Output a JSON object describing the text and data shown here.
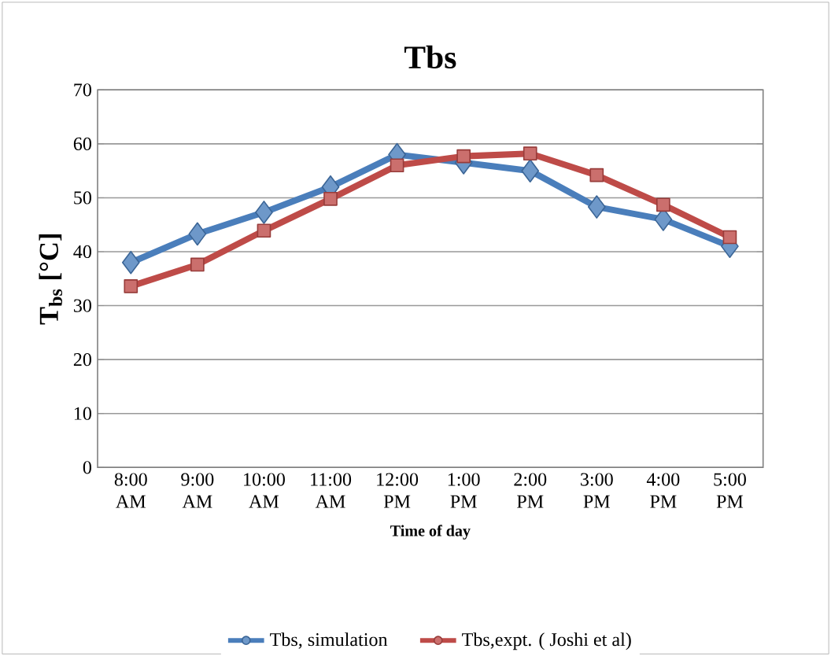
{
  "chart_data": {
    "type": "line",
    "title": "Tbs",
    "xlabel": "Time of day",
    "ylabel": "T$_{bs}$ [°C]",
    "categories": [
      "8:00 AM",
      "9:00 AM",
      "10:00 AM",
      "11:00 AM",
      "12:00 PM",
      "1:00 PM",
      "2:00 PM",
      "3:00 PM",
      "4:00 PM",
      "5:00 PM"
    ],
    "series": [
      {
        "name": "Tbs, simulation",
        "color": "#4a7ebb",
        "marker": "diamond",
        "values": [
          38,
          43.3,
          47.3,
          52,
          58,
          56.5,
          55,
          48.3,
          46,
          41
        ]
      },
      {
        "name": "Tbs,expt. ( Joshi et al)",
        "color": "#be4b48",
        "marker": "square",
        "values": [
          33.6,
          37.6,
          43.9,
          49.8,
          56,
          57.7,
          58.2,
          54.2,
          48.7,
          42.7
        ]
      }
    ],
    "ylim": [
      0,
      70
    ],
    "yticks": [
      0,
      10,
      20,
      30,
      40,
      50,
      60,
      70
    ],
    "grid": "y",
    "legend": "bottom"
  }
}
